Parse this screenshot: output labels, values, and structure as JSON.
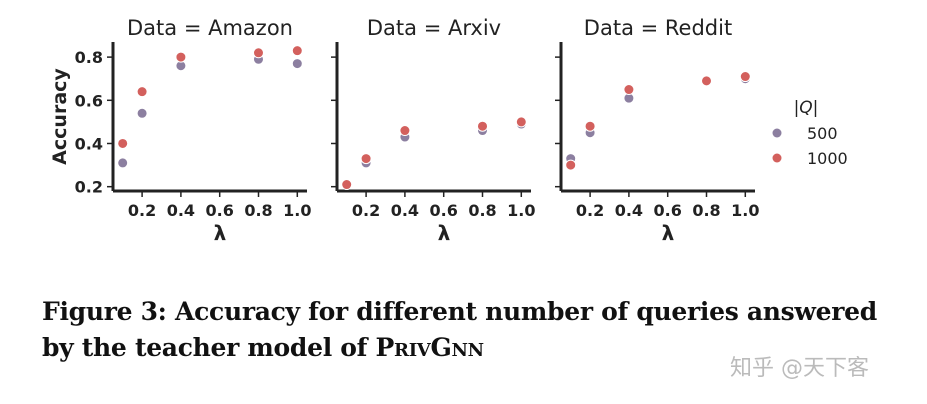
{
  "chart_data": [
    {
      "type": "scatter",
      "title": "Data = Amazon",
      "xlabel": "λ",
      "ylabel": "Accuracy",
      "xlim": [
        0.05,
        1.05
      ],
      "ylim": [
        0.18,
        0.87
      ],
      "xticks": [
        "0.2",
        "0.4",
        "0.6",
        "0.8",
        "1.0"
      ],
      "yticks": [
        "0.2",
        "0.4",
        "0.6",
        "0.8"
      ],
      "grid": false,
      "x": [
        0.1,
        0.2,
        0.4,
        0.8,
        1.0
      ],
      "series": [
        {
          "name": "500",
          "values": [
            0.31,
            0.54,
            0.76,
            0.79,
            0.77
          ]
        },
        {
          "name": "1000",
          "values": [
            0.4,
            0.64,
            0.8,
            0.82,
            0.83
          ]
        }
      ]
    },
    {
      "type": "scatter",
      "title": "Data = Arxiv",
      "xlabel": "λ",
      "ylabel": "",
      "xlim": [
        0.05,
        1.05
      ],
      "ylim": [
        0.18,
        0.87
      ],
      "xticks": [
        "0.2",
        "0.4",
        "0.6",
        "0.8",
        "1.0"
      ],
      "grid": false,
      "x": [
        0.1,
        0.2,
        0.4,
        0.8,
        1.0
      ],
      "series": [
        {
          "name": "500",
          "values": [
            0.21,
            0.31,
            0.43,
            0.46,
            0.49
          ]
        },
        {
          "name": "1000",
          "values": [
            0.21,
            0.33,
            0.46,
            0.48,
            0.5
          ]
        }
      ]
    },
    {
      "type": "scatter",
      "title": "Data = Reddit",
      "xlabel": "λ",
      "ylabel": "",
      "xlim": [
        0.05,
        1.05
      ],
      "ylim": [
        0.18,
        0.87
      ],
      "xticks": [
        "0.2",
        "0.4",
        "0.6",
        "0.8",
        "1.0"
      ],
      "grid": false,
      "x": [
        0.1,
        0.2,
        0.4,
        0.8,
        1.0
      ],
      "series": [
        {
          "name": "500",
          "values": [
            0.33,
            0.45,
            0.61,
            0.69,
            0.7
          ]
        },
        {
          "name": "1000",
          "values": [
            0.3,
            0.48,
            0.65,
            0.69,
            0.71
          ]
        }
      ]
    }
  ],
  "legend": {
    "title": "|Q|",
    "placement": "right",
    "entries": [
      {
        "label": "500",
        "color": "#8c7fa0"
      },
      {
        "label": "1000",
        "color": "#d3605d"
      }
    ]
  },
  "caption": {
    "text": "Figure 3: Accuracy for different number of queries answered",
    "line2": "by the teacher model of ",
    "name": "PrivGnn"
  },
  "watermark": "知乎 @天下客"
}
